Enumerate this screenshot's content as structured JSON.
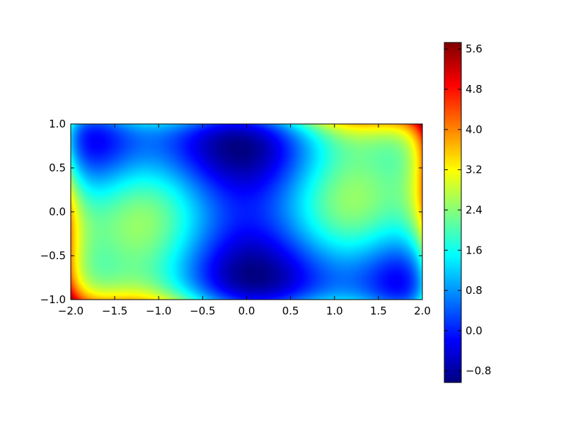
{
  "chart_data": {
    "type": "heatmap",
    "title": "",
    "xlabel": "",
    "ylabel": "",
    "xlim": [
      -2.0,
      2.0
    ],
    "ylim": [
      -1.0,
      1.0
    ],
    "x_ticks": [
      -2.0,
      -1.5,
      -1.0,
      -0.5,
      0.0,
      0.5,
      1.0,
      1.5,
      2.0
    ],
    "x_tick_labels": [
      "−2.0",
      "−1.5",
      "−1.0",
      "−0.5",
      "0.0",
      "0.5",
      "1.0",
      "1.5",
      "2.0"
    ],
    "y_ticks": [
      1.0,
      0.5,
      0.0,
      -0.5,
      -1.0
    ],
    "y_tick_labels": [
      "1.0",
      "0.5",
      "0.0",
      "−0.5",
      "−1.0"
    ],
    "colormap": "jet",
    "function": "six-hump camelback: (4 - 2.1x² + x⁴/3)x² + xy + (-4 + 4y²)y²",
    "value_range": [
      -1.03,
      5.73
    ],
    "grid": false,
    "colorbar": {
      "ticks": [
        5.6,
        4.8,
        4.0,
        3.2,
        2.4,
        1.6,
        0.8,
        0.0,
        -0.8
      ],
      "tick_labels": [
        "5.6",
        "4.8",
        "4.0",
        "3.2",
        "2.4",
        "1.6",
        "0.8",
        "0.0",
        "−0.8"
      ],
      "placement": "right"
    }
  }
}
